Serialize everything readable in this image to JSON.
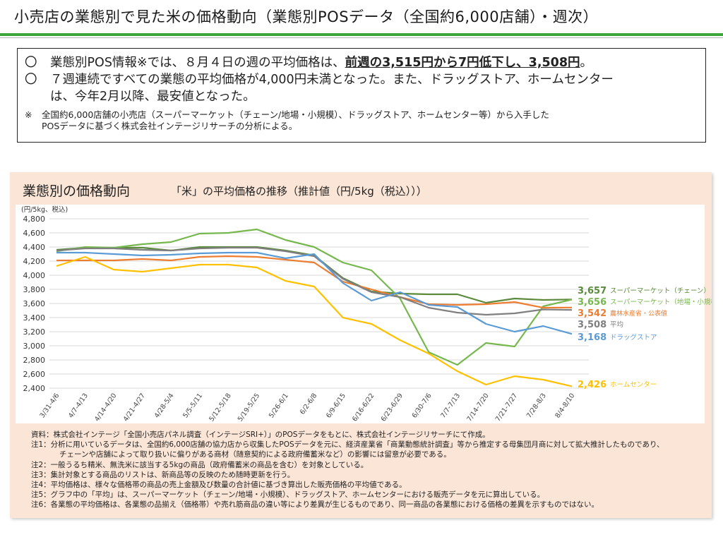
{
  "header": {
    "title": "小売店の業態別で見た米の価格動向（業態別POSデータ（全国約6,000店舗）・週次）"
  },
  "summary": {
    "bullet_mark": "〇",
    "b1_pre": "業態別POS情報※では、８月４日の週の平均価格は、",
    "b1_bold": "前週の3,515円から7円低下し、3,508円",
    "b1_post": "。",
    "b2_line1": "７週連続ですべての業態の平均価格が4,000円未満となった。また、ドラッグストア、ホームセンター",
    "b2_line2": "は、今年2月以降、最安値となった。",
    "note_mark": "※",
    "note_line1": "全国約6,000店舗の小売店（スーパーマーケット（チェーン/地場・小規模）、ドラッグストア、ホームセンター等）から入手した",
    "note_line2": "POSデータに基づく株式会社インテージリサーチの分析による。"
  },
  "panel": {
    "title": "業態別の価格動向",
    "subtitle": "「米」の平均価格の推移（推計値（円/5kg（税込）））"
  },
  "chart_data": {
    "type": "line",
    "ylabel": "(円/5kg、税込)",
    "ylim": [
      2400,
      4800
    ],
    "yticks": [
      2400,
      2600,
      2800,
      3000,
      3200,
      3400,
      3600,
      3800,
      4000,
      4200,
      4400,
      4600,
      4800
    ],
    "grid": true,
    "legend": "right-end labels",
    "categories": [
      "3/31-4/6",
      "4/7-4/13",
      "4/14-4/20",
      "4/21-4/27",
      "4/28-5/4",
      "5/5-5/11",
      "5/12-5/18",
      "5/19-5/25",
      "5/26-6/1",
      "6/2-6/8",
      "6/9-6/15",
      "6/16-6/22",
      "6/23-6/29",
      "6/30-7/6",
      "7/7-7/13",
      "7/14-7/20",
      "7/21-7/27",
      "7/28-8/3",
      "8/4-8/10"
    ],
    "series": [
      {
        "name": "スーパーマーケット（チェーン）",
        "end_label": "3,657",
        "color": "#5a8a3a",
        "values": [
          4360,
          4390,
          4390,
          4390,
          4350,
          4400,
          4400,
          4400,
          4350,
          4280,
          3960,
          3770,
          3740,
          3730,
          3730,
          3610,
          3670,
          3650,
          3657
        ]
      },
      {
        "name": "スーパーマーケット（地場・小規模）",
        "end_label": "3,656",
        "color": "#76b84e",
        "values": [
          4340,
          4400,
          4390,
          4440,
          4470,
          4590,
          4600,
          4650,
          4500,
          4400,
          4180,
          4070,
          3670,
          2910,
          2730,
          3040,
          2990,
          3560,
          3656
        ]
      },
      {
        "name": "農林水産省・公表値",
        "end_label": "3,542",
        "color": "#ed7d31",
        "values": [
          4210,
          4210,
          4210,
          4230,
          4210,
          4260,
          4270,
          4260,
          4220,
          4180,
          3910,
          3800,
          3690,
          3590,
          3580,
          3590,
          3620,
          3540,
          3542
        ]
      },
      {
        "name": "平均",
        "end_label": "3,508",
        "color": "#7f7f7f",
        "values": [
          4350,
          4380,
          4380,
          4360,
          4350,
          4380,
          4390,
          4390,
          4340,
          4270,
          3950,
          3760,
          3690,
          3540,
          3470,
          3440,
          3460,
          3515,
          3508
        ]
      },
      {
        "name": "ドラッグストア",
        "end_label": "3,168",
        "color": "#5b9bd5",
        "values": [
          4320,
          4320,
          4300,
          4280,
          4290,
          4310,
          4320,
          4320,
          4240,
          4300,
          3890,
          3640,
          3760,
          3580,
          3550,
          3310,
          3200,
          3280,
          3168
        ]
      },
      {
        "name": "ホームセンター",
        "end_label": "2,426",
        "color": "#ffc000",
        "values": [
          4130,
          4260,
          4080,
          4050,
          4100,
          4150,
          4150,
          4110,
          3920,
          3840,
          3400,
          3310,
          3080,
          2890,
          2640,
          2450,
          2570,
          2520,
          2426
        ]
      }
    ]
  },
  "notes": [
    "資料：株式会社インテージ「全国小売店パネル調査（インテージSRI+）」のPOSデータをもとに、株式会社インテージリサーチにて作成。",
    "注1：分析に用いているデータは、全国約6,000店舗の協力店から収集したPOSデータを元に、経済産業省「商業動態統計調査」等から推定する母集団月商に対して拡大推計したものであり、",
    "チェーンや店舗によって取り扱いに偏りがある商材（随意契約による政府備蓄米など）の影響には留意が必要である。",
    "注2：一般うるち精米、無洗米に該当する5kgの商品（政府備蓄米の商品を含む）を対象としている。",
    "注3：集計対象とする商品のリストは、新商品等の反映のため随時更新を行う。",
    "注4：平均価格は、様々な価格帯の商品の売上金額及び数量の合計値に基づき算出した販売価格の平均値である。",
    "注5：グラフ中の「平均」は、スーパーマーケット（チェーン/地場・小規模）、ドラッグストア、ホームセンターにおける販売データを元に算出している。",
    "注6：各業態の平均価格は、各業態の品揃え（価格帯）や売れ筋商品の違い等により差異が生じるものであり、同一商品の各業態における価格の差異を示すものではない。"
  ]
}
